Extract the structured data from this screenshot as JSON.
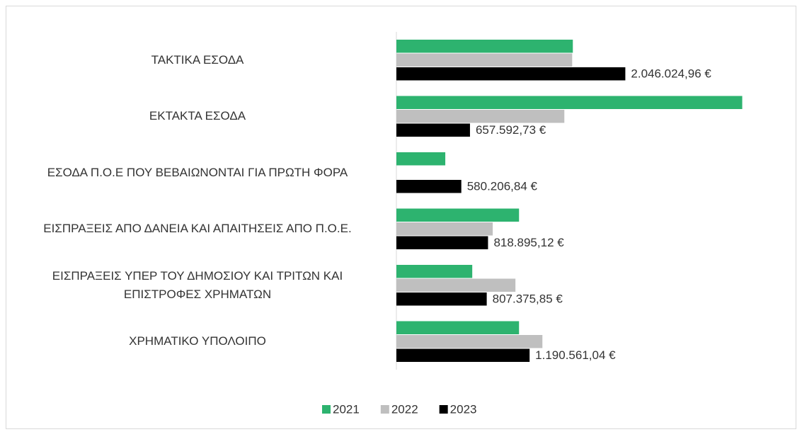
{
  "chart_data": {
    "type": "bar",
    "orientation": "horizontal",
    "categories": [
      "ΤΑΚΤΙΚΑ ΕΣΟΔΑ",
      "ΕΚΤΑΚΤΑ ΕΣΟΔΑ",
      "ΕΣΟΔΑ Π.Ο.Ε ΠΟΥ ΒΕΒΑΙΩΝΟΝΤΑΙ ΓΙΑ ΠΡΩΤΗ ΦΟΡΑ",
      "ΕΙΣΠΡΑΞΕΙΣ ΑΠΟ ΔΑΝΕΙΑ ΚΑΙ ΑΠΑΙΤΗΣΕΙΣ ΑΠΟ Π.Ο.Ε.",
      "ΕΙΣΠΡΑΞΕΙΣ ΥΠΕΡ ΤΟΥ ΔΗΜΟΣΙΟΥ ΚΑΙ ΤΡΙΤΩΝ ΚΑΙ ΕΠΙΣΤΡΟΦΕΣ ΧΡΗΜΑΤΩΝ",
      "ΧΡΗΜΑΤΙΚΟ ΥΠΟΛΟΙΠΟ"
    ],
    "series": [
      {
        "name": "2021",
        "color": "#2db36f",
        "values": [
          1577000,
          3091000,
          437000,
          1096000,
          678000,
          1096000
        ]
      },
      {
        "name": "2022",
        "color": "#bfbfbf",
        "values": [
          1571000,
          1501000,
          null,
          861000,
          1064000,
          1305000
        ]
      },
      {
        "name": "2023",
        "color": "#000000",
        "values": [
          2046024.96,
          657592.73,
          580206.84,
          818895.12,
          807375.85,
          1190561.04
        ],
        "value_labels": [
          "2.046.024,96 €",
          "657.592,73 €",
          "580.206,84 €",
          "818.895,12 €",
          "807.375,85 €",
          "1.190.561,04 €"
        ]
      }
    ],
    "xlim": [
      0,
      3100000
    ],
    "legend": "bottom"
  }
}
